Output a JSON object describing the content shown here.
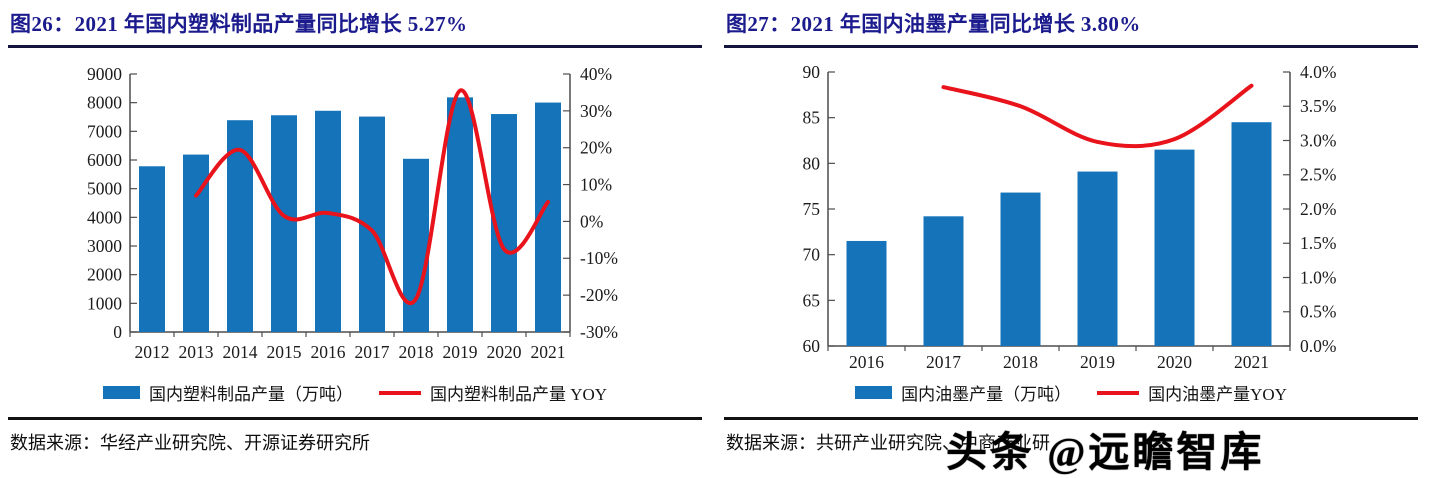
{
  "colors": {
    "bar_blue": "#1473B9",
    "line_red": "#E8131B",
    "title_navy": "#1B1B8E",
    "axis_gray": "#4d4d4d"
  },
  "watermark": {
    "text": "头条 @远瞻智库"
  },
  "panels": [
    {
      "source": "数据来源：华经产业研究院、开源证券研究所"
    },
    {
      "source": "数据来源：共研产业研究院、中商产业研"
    }
  ],
  "chart_data": [
    {
      "type": "bar",
      "title": "图26：2021 年国内塑料制品产量同比增长 5.27%",
      "categories": [
        "2012",
        "2013",
        "2014",
        "2015",
        "2016",
        "2017",
        "2018",
        "2019",
        "2020",
        "2021"
      ],
      "series": [
        {
          "name": "国内塑料制品产量（万吨）",
          "type": "bar",
          "axis": "left",
          "values": [
            5781,
            6189,
            7388,
            7561,
            7717,
            7515,
            6042,
            8184,
            7603,
            8004
          ]
        },
        {
          "name": "国内塑料制品产量 YOY",
          "type": "line",
          "axis": "right",
          "values": [
            null,
            7.0,
            19.4,
            1.5,
            2.3,
            -2.5,
            -21.0,
            35.5,
            -7.5,
            5.27
          ]
        }
      ],
      "left_axis": {
        "min": 0,
        "max": 9000,
        "tick_labels": [
          "9000",
          "8000",
          "7000",
          "6000",
          "5000",
          "4000",
          "3000",
          "2000",
          "1000",
          "0"
        ]
      },
      "right_axis": {
        "min": -30,
        "max": 40,
        "tick_labels": [
          "40%",
          "30%",
          "20%",
          "10%",
          "0%",
          "-10%",
          "-20%",
          "-30%"
        ]
      },
      "grid": false,
      "legend_position": "bottom"
    },
    {
      "type": "bar",
      "title": "图27：2021 年国内油墨产量同比增长 3.80%",
      "categories": [
        "2016",
        "2017",
        "2018",
        "2019",
        "2020",
        "2021"
      ],
      "series": [
        {
          "name": "国内油墨产量（万吨）",
          "type": "bar",
          "axis": "left",
          "values": [
            71.5,
            74.2,
            76.8,
            79.1,
            81.5,
            84.5
          ]
        },
        {
          "name": "国内油墨产量YOY",
          "type": "line",
          "axis": "right",
          "values": [
            null,
            3.78,
            3.5,
            2.98,
            3.02,
            3.8
          ]
        }
      ],
      "left_axis": {
        "min": 60,
        "max": 90,
        "tick_labels": [
          "90",
          "85",
          "80",
          "75",
          "70",
          "65",
          "60"
        ]
      },
      "right_axis": {
        "min": 0,
        "max": 4,
        "tick_labels": [
          "4.0%",
          "3.5%",
          "3.0%",
          "2.5%",
          "2.0%",
          "1.5%",
          "1.0%",
          "0.5%",
          "0.0%"
        ]
      },
      "grid": false,
      "legend_position": "bottom"
    }
  ]
}
